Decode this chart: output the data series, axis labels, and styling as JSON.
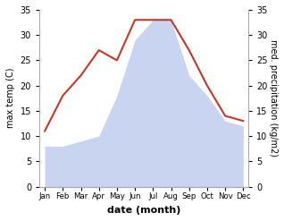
{
  "months": [
    "Jan",
    "Feb",
    "Mar",
    "Apr",
    "May",
    "Jun",
    "Jul",
    "Aug",
    "Sep",
    "Oct",
    "Nov",
    "Dec"
  ],
  "temperature": [
    11,
    18,
    22,
    27,
    25,
    33,
    33,
    33,
    27,
    20,
    14,
    13
  ],
  "precipitation": [
    8,
    8,
    9,
    10,
    18,
    29,
    33,
    33,
    22,
    18,
    13,
    12
  ],
  "temp_color": "#c0392b",
  "precip_color_fill": "#c8d4f0",
  "ylim_left": [
    0,
    35
  ],
  "ylim_right": [
    0,
    35
  ],
  "yticks": [
    0,
    5,
    10,
    15,
    20,
    25,
    30,
    35
  ],
  "xlabel": "date (month)",
  "ylabel_left": "max temp (C)",
  "ylabel_right": "med. precipitation (kg/m2)",
  "background_color": "#ffffff",
  "spine_color": "#aaaaaa"
}
